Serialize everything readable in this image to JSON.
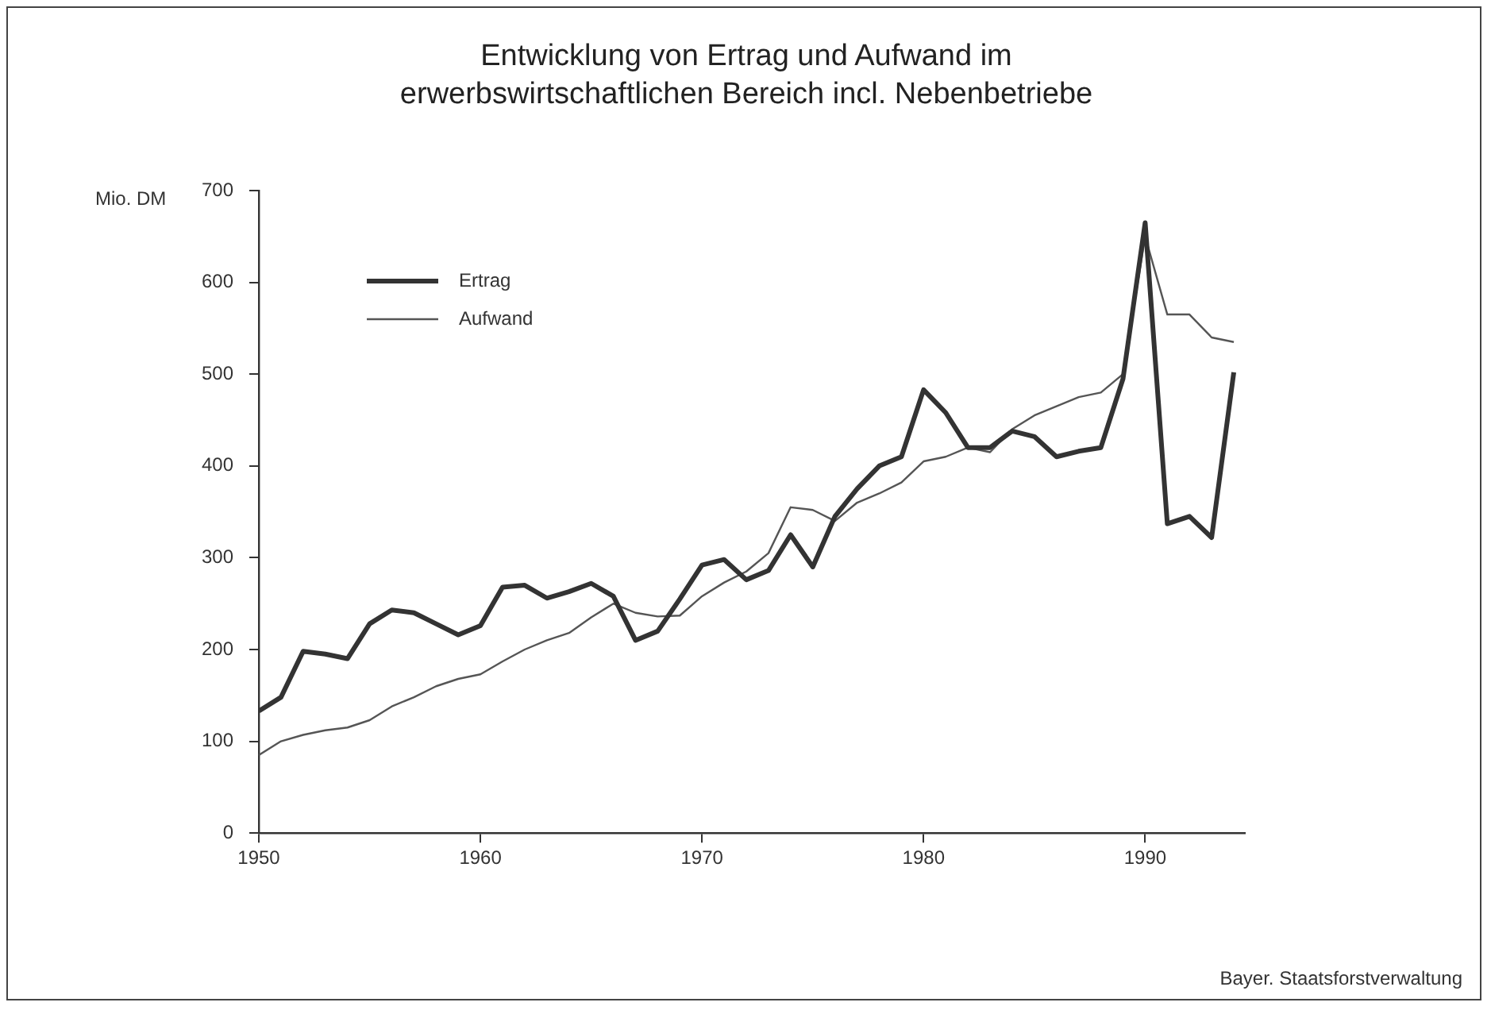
{
  "chart_data": {
    "type": "line",
    "title": "Entwicklung von Ertrag und Aufwand im erwerbswirtschaftlichen Bereich incl. Nebenbetriebe",
    "ylabel": "Mio. DM",
    "annotations": [
      "Bayer. Staatsforstverwaltung"
    ],
    "x": [
      1950,
      1951,
      1952,
      1953,
      1954,
      1955,
      1956,
      1957,
      1958,
      1959,
      1960,
      1961,
      1962,
      1963,
      1964,
      1965,
      1966,
      1967,
      1968,
      1969,
      1970,
      1971,
      1972,
      1973,
      1974,
      1975,
      1976,
      1977,
      1978,
      1979,
      1980,
      1981,
      1982,
      1983,
      1984,
      1985,
      1986,
      1987,
      1988,
      1989,
      1990,
      1991,
      1992,
      1993,
      1994
    ],
    "series": [
      {
        "name": "Ertrag",
        "color": "#333333",
        "values": [
          133,
          148,
          198,
          195,
          190,
          228,
          243,
          240,
          228,
          216,
          226,
          268,
          270,
          256,
          263,
          272,
          258,
          210,
          220,
          255,
          292,
          298,
          276,
          286,
          325,
          290,
          345,
          375,
          400,
          410,
          483,
          458,
          420,
          420,
          438,
          432,
          410,
          416,
          420,
          495,
          665,
          337,
          345,
          322,
          502
        ]
      },
      {
        "name": "Aufwand",
        "color": "#555555",
        "values": [
          85,
          100,
          107,
          112,
          115,
          123,
          138,
          148,
          160,
          168,
          173,
          187,
          200,
          210,
          218,
          235,
          250,
          240,
          236,
          237,
          258,
          273,
          285,
          305,
          355,
          352,
          340,
          360,
          370,
          382,
          405,
          410,
          420,
          415,
          440,
          455,
          465,
          475,
          480,
          500,
          650,
          565,
          565,
          540,
          535
        ]
      }
    ],
    "xlim": [
      1950,
      1994.5
    ],
    "xticks": [
      1950,
      1960,
      1970,
      1980,
      1990
    ],
    "ylim": [
      0,
      700
    ],
    "yticks": [
      0,
      100,
      200,
      300,
      400,
      500,
      600,
      700
    ],
    "legend": "top left",
    "marker": "none",
    "line_style": "solid"
  }
}
